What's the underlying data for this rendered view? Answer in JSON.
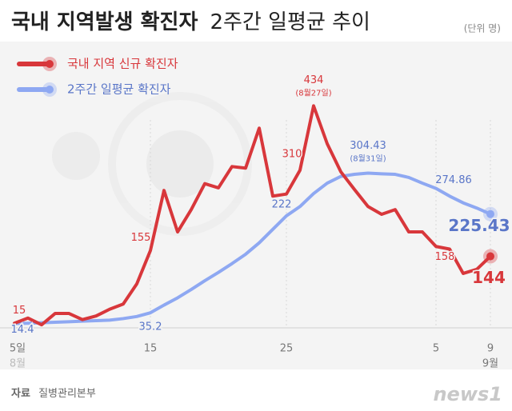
{
  "chart_data": {
    "type": "line",
    "title_bold": "국내 지역발생 확진자",
    "title_rest": "2주간 일평균 추이",
    "unit": "(단위 명)",
    "source_label": "자료",
    "source": "질병관리본부",
    "logo": "news1",
    "categories": [
      "5일",
      null,
      null,
      null,
      null,
      null,
      null,
      null,
      null,
      null,
      "15",
      null,
      null,
      null,
      null,
      null,
      null,
      null,
      null,
      null,
      "25",
      null,
      null,
      null,
      null,
      null,
      null,
      null,
      null,
      null,
      null,
      "5",
      null,
      null,
      null,
      "9"
    ],
    "month_labels": [
      "8월",
      null,
      null,
      null,
      null,
      null,
      null,
      null,
      null,
      null,
      null,
      null,
      null,
      null,
      null,
      null,
      null,
      null,
      null,
      null,
      null,
      null,
      null,
      null,
      null,
      null,
      null,
      null,
      null,
      null,
      null,
      null,
      null,
      null,
      null,
      "9월"
    ],
    "ylim": [
      0,
      450
    ],
    "series": [
      {
        "name": "국내 지역 신규 확진자",
        "color": "#d8373b",
        "label_color": "#d8373b",
        "values": [
          15,
          25,
          12,
          34,
          34,
          22,
          29,
          42,
          52,
          91,
          155,
          271,
          191,
          234,
          284,
          276,
          317,
          314,
          391,
          260,
          264,
          310,
          434,
          361,
          307,
          273,
          240,
          225,
          234,
          191,
          191,
          163,
          158,
          111,
          119,
          144
        ],
        "label_indices": [
          0,
          10,
          21,
          22,
          32,
          35
        ]
      },
      {
        "name": "2주간 일평균 확진자",
        "color": "#8ea8f2",
        "label_color": "#5a76c8",
        "values": [
          14.4,
          15,
          16,
          17,
          18,
          19,
          20,
          21,
          24,
          28,
          35.2,
          50,
          64,
          80,
          97,
          113,
          130,
          148,
          170,
          196,
          222,
          240,
          265,
          285,
          298,
          302,
          304.43,
          303,
          302,
          296,
          285,
          274.86,
          260,
          247,
          237,
          225.43
        ],
        "label_indices": [
          0,
          10,
          20,
          26,
          31,
          35
        ]
      }
    ],
    "annotations": [
      {
        "series": 0,
        "index": 22,
        "text": "(8월27일)"
      },
      {
        "series": 1,
        "index": 26,
        "text": "(8월31일)"
      }
    ],
    "legend": "top-left"
  }
}
